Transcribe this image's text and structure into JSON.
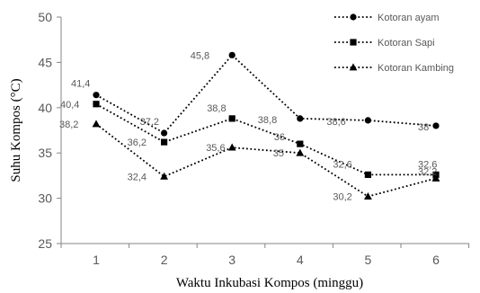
{
  "chart_data": {
    "type": "line",
    "title": "",
    "xlabel": "Waktu Inkubasi Kompos (minggu)",
    "ylabel": "Suhu Kompos (°C)",
    "x": [
      1,
      2,
      3,
      4,
      5,
      6
    ],
    "x_tick_labels": [
      "1",
      "2",
      "3",
      "4",
      "5",
      "6"
    ],
    "ylim": [
      25,
      50
    ],
    "y_ticks": [
      25,
      30,
      35,
      40,
      45,
      50
    ],
    "y_tick_labels": [
      "25",
      "30",
      "35",
      "40",
      "45",
      "50"
    ],
    "grid": false,
    "legend_position": "top-right",
    "series": [
      {
        "name": "Kotoran ayam",
        "marker": "circle",
        "values": [
          41.4,
          37.2,
          45.8,
          38.8,
          38.6,
          38
        ],
        "data_labels": [
          "41,4",
          "37,2",
          "45,8",
          "38,8",
          "38,6",
          "38"
        ]
      },
      {
        "name": "Kotoran Sapi",
        "marker": "square",
        "values": [
          40.4,
          36.2,
          38.8,
          36,
          32.6,
          32.6
        ],
        "data_labels": [
          "40,4",
          "36,2",
          "38,8",
          "36",
          "32,6",
          "32,6"
        ]
      },
      {
        "name": "Kotoran Kambing",
        "marker": "triangle",
        "values": [
          38.2,
          32.4,
          35.6,
          35,
          30.2,
          32.2
        ],
        "data_labels": [
          "38,2",
          "32,4",
          "35,6",
          "35",
          "30,2",
          "32,2"
        ]
      }
    ]
  }
}
